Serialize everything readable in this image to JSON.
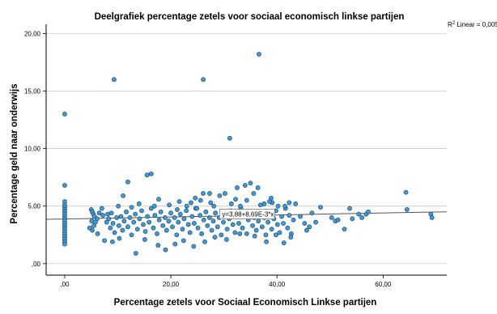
{
  "chart_data": {
    "type": "scatter",
    "title": "Deelgrafiek percentage zetels voor sociaal economisch linkse partijen",
    "xlabel": "Percentage zetels voor Sociaal Economisch Linkse partijen",
    "ylabel": "Percentage geld naar onderwijs",
    "xlim": [
      -3.5,
      72
    ],
    "ylim": [
      -1.0,
      20.8
    ],
    "grid": "horizontal",
    "x_ticks": [
      {
        "value": 0,
        "label": ",00"
      },
      {
        "value": 20,
        "label": "20,00"
      },
      {
        "value": 40,
        "label": "40,00"
      },
      {
        "value": 60,
        "label": "60,00"
      }
    ],
    "y_ticks": [
      {
        "value": 0,
        "label": ",00"
      },
      {
        "value": 5,
        "label": "5,00"
      },
      {
        "value": 10,
        "label": "10,00"
      },
      {
        "value": 15,
        "label": "15,00"
      },
      {
        "value": 20,
        "label": "20,00"
      }
    ],
    "r2_label": "R",
    "r2_sup": "2",
    "r2_text": " Linear = 0,005",
    "fit_line": {
      "intercept": 3.88,
      "slope": 0.00869,
      "label": "y=3,88+8,69E-3*x",
      "label_at": {
        "x": 29.5,
        "y": 4.1
      }
    },
    "colors": {
      "marker_fill": "#3e9ad6",
      "marker_stroke": "#1d3f5c",
      "line": "#555555",
      "grid": "#c8c8c8",
      "axis": "#000000",
      "text": "#000000"
    },
    "points": [
      [
        0,
        13.0
      ],
      [
        0,
        6.8
      ],
      [
        0,
        5.4
      ],
      [
        0,
        5.1
      ],
      [
        0,
        4.9
      ],
      [
        0,
        4.7
      ],
      [
        0,
        4.5
      ],
      [
        0,
        4.3
      ],
      [
        0,
        4.1
      ],
      [
        0,
        3.9
      ],
      [
        0,
        3.7
      ],
      [
        0,
        3.5
      ],
      [
        0,
        3.3
      ],
      [
        0,
        3.1
      ],
      [
        0,
        2.9
      ],
      [
        0,
        2.7
      ],
      [
        0,
        2.5
      ],
      [
        0,
        2.3
      ],
      [
        0,
        2.1
      ],
      [
        0,
        1.9
      ],
      [
        0,
        1.7
      ],
      [
        9.3,
        16.0
      ],
      [
        26.1,
        16.0
      ],
      [
        36.6,
        18.2
      ],
      [
        31.1,
        10.9
      ],
      [
        11.9,
        7.1
      ],
      [
        15.5,
        7.7
      ],
      [
        16.3,
        7.8
      ],
      [
        35.0,
        7.0
      ],
      [
        34.0,
        6.8
      ],
      [
        32.5,
        6.6
      ],
      [
        36.4,
        6.6
      ],
      [
        30.2,
        6.1
      ],
      [
        29.2,
        5.9
      ],
      [
        26.1,
        6.1
      ],
      [
        27.3,
        6.1
      ],
      [
        24.6,
        5.7
      ],
      [
        25.6,
        5.5
      ],
      [
        23.8,
        5.3
      ],
      [
        28.1,
        5.0
      ],
      [
        34.3,
        5.5
      ],
      [
        37.6,
        5.2
      ],
      [
        39.1,
        5.3
      ],
      [
        42.3,
        5.3
      ],
      [
        40.2,
        5.0
      ],
      [
        5.0,
        4.7
      ],
      [
        5.2,
        4.5
      ],
      [
        5.4,
        4.3
      ],
      [
        5.6,
        4.1
      ],
      [
        5.1,
        3.7
      ],
      [
        5.5,
        3.3
      ],
      [
        5.2,
        2.9
      ],
      [
        6.1,
        3.9
      ],
      [
        6.5,
        4.4
      ],
      [
        7.2,
        4.2
      ],
      [
        7.9,
        3.6
      ],
      [
        8.3,
        3.9
      ],
      [
        8.6,
        3.1
      ],
      [
        8.8,
        4.4
      ],
      [
        9.1,
        3.5
      ],
      [
        9.4,
        2.7
      ],
      [
        9.8,
        4.0
      ],
      [
        10.2,
        3.3
      ],
      [
        10.6,
        4.1
      ],
      [
        10.9,
        2.9
      ],
      [
        11.2,
        3.7
      ],
      [
        11.6,
        4.5
      ],
      [
        11.9,
        3.2
      ],
      [
        12.3,
        4.0
      ],
      [
        12.6,
        2.5
      ],
      [
        13.0,
        3.6
      ],
      [
        13.3,
        4.3
      ],
      [
        13.7,
        3.0
      ],
      [
        14.1,
        3.9
      ],
      [
        14.5,
        4.6
      ],
      [
        14.8,
        3.4
      ],
      [
        15.2,
        2.8
      ],
      [
        15.6,
        4.1
      ],
      [
        15.9,
        3.6
      ],
      [
        16.3,
        4.8
      ],
      [
        16.7,
        3.1
      ],
      [
        17.0,
        4.2
      ],
      [
        17.4,
        2.6
      ],
      [
        17.8,
        3.8
      ],
      [
        18.1,
        4.5
      ],
      [
        18.5,
        3.3
      ],
      [
        18.9,
        4.0
      ],
      [
        19.2,
        2.9
      ],
      [
        19.6,
        3.7
      ],
      [
        20.0,
        4.4
      ],
      [
        20.3,
        3.2
      ],
      [
        20.7,
        4.0
      ],
      [
        21.1,
        2.5
      ],
      [
        21.4,
        3.6
      ],
      [
        21.8,
        4.3
      ],
      [
        22.2,
        3.0
      ],
      [
        22.5,
        3.9
      ],
      [
        22.9,
        4.6
      ],
      [
        23.3,
        3.4
      ],
      [
        23.6,
        2.7
      ],
      [
        24.0,
        4.1
      ],
      [
        24.4,
        3.5
      ],
      [
        24.7,
        4.8
      ],
      [
        25.1,
        3.1
      ],
      [
        25.5,
        4.2
      ],
      [
        25.8,
        2.6
      ],
      [
        26.2,
        3.8
      ],
      [
        26.6,
        4.5
      ],
      [
        26.9,
        3.3
      ],
      [
        27.3,
        4.0
      ],
      [
        27.7,
        2.9
      ],
      [
        28.0,
        3.7
      ],
      [
        28.4,
        4.4
      ],
      [
        28.8,
        3.2
      ],
      [
        29.1,
        4.0
      ],
      [
        29.5,
        2.5
      ],
      [
        29.9,
        3.6
      ],
      [
        30.2,
        4.3
      ],
      [
        30.6,
        3.0
      ],
      [
        31.0,
        3.9
      ],
      [
        31.3,
        4.6
      ],
      [
        31.7,
        3.4
      ],
      [
        32.1,
        2.7
      ],
      [
        32.4,
        4.1
      ],
      [
        32.8,
        3.5
      ],
      [
        33.2,
        4.8
      ],
      [
        33.5,
        3.1
      ],
      [
        33.9,
        4.2
      ],
      [
        34.3,
        2.6
      ],
      [
        34.6,
        3.8
      ],
      [
        35.0,
        4.5
      ],
      [
        35.4,
        3.3
      ],
      [
        35.7,
        4.0
      ],
      [
        36.1,
        2.9
      ],
      [
        36.5,
        3.7
      ],
      [
        36.8,
        4.4
      ],
      [
        37.2,
        3.2
      ],
      [
        37.6,
        4.0
      ],
      [
        37.9,
        2.5
      ],
      [
        38.3,
        3.6
      ],
      [
        38.7,
        4.3
      ],
      [
        39.0,
        3.0
      ],
      [
        39.4,
        3.9
      ],
      [
        39.8,
        4.6
      ],
      [
        40.1,
        3.4
      ],
      [
        40.5,
        2.7
      ],
      [
        40.9,
        4.1
      ],
      [
        41.2,
        3.5
      ],
      [
        41.6,
        4.8
      ],
      [
        42.0,
        3.1
      ],
      [
        42.3,
        4.2
      ],
      [
        42.7,
        2.6
      ],
      [
        43.1,
        3.8
      ],
      [
        4.7,
        3.1
      ],
      [
        6.2,
        2.6
      ],
      [
        7.5,
        2.0
      ],
      [
        9.0,
        1.9
      ],
      [
        10.3,
        2.2
      ],
      [
        13.4,
        0.9
      ],
      [
        15.1,
        2.1
      ],
      [
        17.6,
        1.6
      ],
      [
        19.0,
        1.2
      ],
      [
        20.8,
        1.7
      ],
      [
        22.4,
        2.0
      ],
      [
        24.3,
        1.5
      ],
      [
        26.4,
        1.9
      ],
      [
        28.3,
        2.3
      ],
      [
        30.5,
        2.1
      ],
      [
        33.0,
        2.6
      ],
      [
        35.8,
        2.4
      ],
      [
        38.0,
        1.9
      ],
      [
        39.8,
        2.5
      ],
      [
        41.3,
        1.8
      ],
      [
        42.6,
        2.3
      ],
      [
        5.8,
        3.6
      ],
      [
        7.0,
        4.8
      ],
      [
        8.1,
        4.3
      ],
      [
        10.1,
        5.0
      ],
      [
        12.6,
        4.9
      ],
      [
        14.0,
        5.2
      ],
      [
        16.9,
        5.0
      ],
      [
        19.7,
        5.1
      ],
      [
        21.2,
        4.7
      ],
      [
        23.0,
        5.0
      ],
      [
        27.5,
        5.3
      ],
      [
        31.4,
        5.2
      ],
      [
        33.1,
        5.0
      ],
      [
        36.9,
        5.1
      ],
      [
        38.6,
        5.4
      ],
      [
        41.5,
        5.0
      ],
      [
        43.5,
        5.2
      ],
      [
        11.0,
        5.9
      ],
      [
        17.7,
        5.6
      ],
      [
        21.6,
        5.4
      ],
      [
        24.9,
        4.8
      ],
      [
        32.2,
        5.6
      ],
      [
        35.6,
        6.1
      ],
      [
        38.9,
        5.7
      ],
      [
        44.4,
        4.1
      ],
      [
        45.2,
        3.5
      ],
      [
        45.6,
        2.9
      ],
      [
        46.1,
        3.2
      ],
      [
        46.6,
        4.4
      ],
      [
        47.3,
        3.6
      ],
      [
        48.2,
        4.9
      ],
      [
        50.3,
        4.0
      ],
      [
        51.0,
        3.7
      ],
      [
        51.5,
        3.8
      ],
      [
        52.7,
        3.0
      ],
      [
        53.7,
        4.8
      ],
      [
        54.2,
        3.9
      ],
      [
        55.4,
        4.3
      ],
      [
        56.0,
        4.0
      ],
      [
        56.8,
        4.3
      ],
      [
        57.2,
        4.5
      ],
      [
        64.3,
        6.2
      ],
      [
        64.5,
        4.7
      ],
      [
        69.0,
        4.3
      ],
      [
        69.2,
        4.0
      ]
    ]
  }
}
